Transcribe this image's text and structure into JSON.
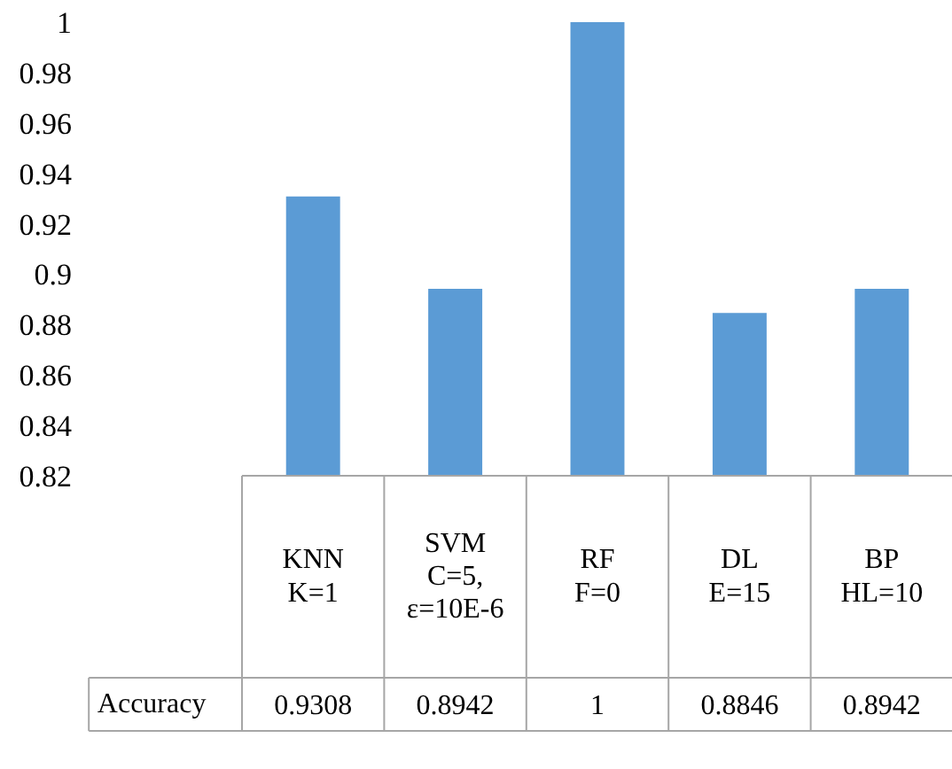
{
  "chart_data": {
    "type": "bar",
    "categories": [
      "KNN K=1",
      "SVM C=5, ε=10E-6",
      "RF F=0",
      "DL E=15",
      "BP HL=10"
    ],
    "series": [
      {
        "name": "Accuracy",
        "color": "#5b9bd5",
        "values": [
          0.9308,
          0.8942,
          1,
          0.8846,
          0.8942
        ]
      }
    ],
    "ylim": [
      0.82,
      1
    ],
    "yticks": [
      0.82,
      0.84,
      0.86,
      0.88,
      0.9,
      0.92,
      0.94,
      0.96,
      0.98,
      1
    ],
    "data_labels": true
  }
}
